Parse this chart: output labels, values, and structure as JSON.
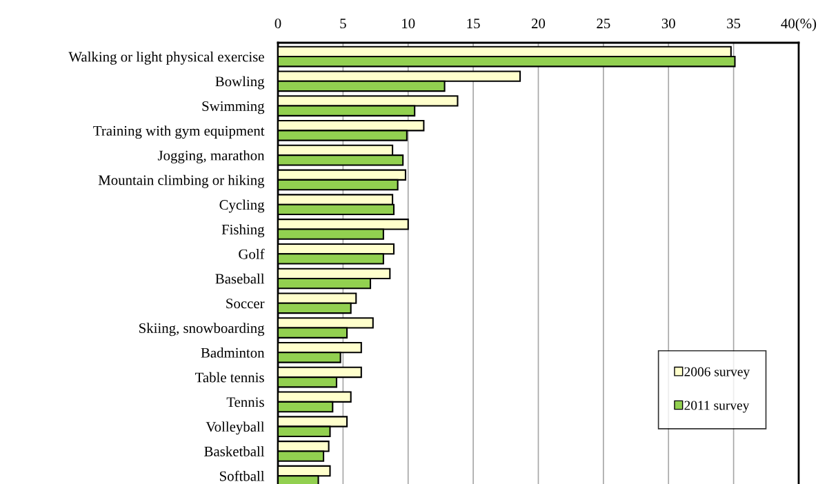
{
  "chart_data": {
    "type": "bar",
    "orientation": "horizontal",
    "categories": [
      "Walking or light physical exercise",
      "Bowling",
      "Swimming",
      "Training with gym equipment",
      "Jogging, marathon",
      "Mountain climbing or hiking",
      "Cycling",
      "Fishing",
      "Golf",
      "Baseball",
      "Soccer",
      "Skiing, snowboarding",
      "Badminton",
      "Table tennis",
      "Tennis",
      "Volleyball",
      "Basketball",
      "Softball"
    ],
    "series": [
      {
        "name": "2006 survey",
        "color": "#ffffcc",
        "values": [
          34.8,
          18.6,
          13.8,
          11.2,
          8.8,
          9.8,
          8.8,
          10.0,
          8.9,
          8.6,
          6.0,
          7.3,
          6.4,
          6.4,
          5.6,
          5.3,
          3.9,
          4.0
        ]
      },
      {
        "name": "2011 survey",
        "color": "#92d050",
        "values": [
          35.1,
          12.8,
          10.5,
          9.9,
          9.6,
          9.2,
          8.9,
          8.1,
          8.1,
          7.1,
          5.6,
          5.3,
          4.8,
          4.5,
          4.2,
          4.0,
          3.5,
          3.1
        ]
      }
    ],
    "xlim": [
      0,
      40
    ],
    "xticks": [
      0,
      5,
      10,
      15,
      20,
      25,
      30,
      35,
      {
        "value": 40,
        "label": "40(%)"
      }
    ],
    "grid": "x",
    "legend": "bottom right"
  }
}
